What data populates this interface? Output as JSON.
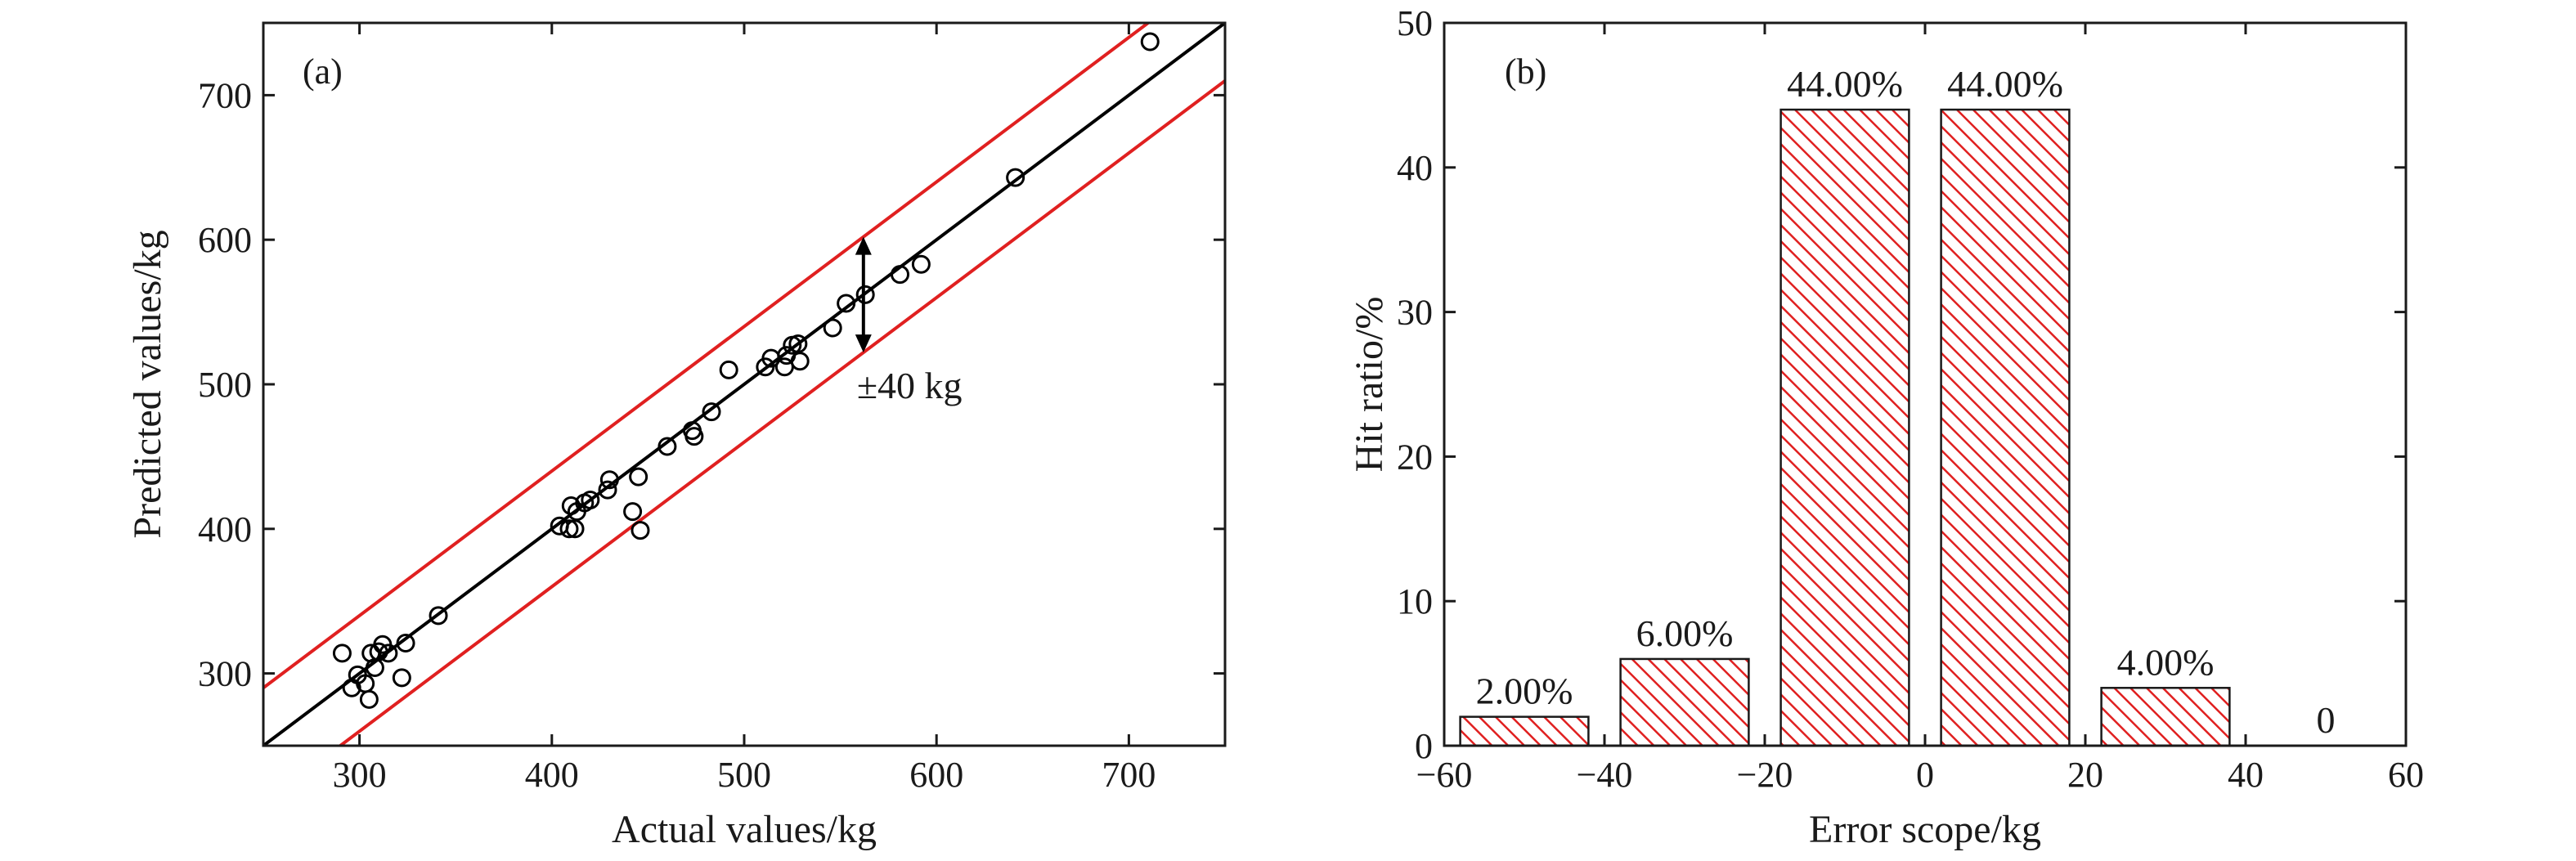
{
  "chart_data": [
    {
      "type": "scatter",
      "panel_label": "(a)",
      "xlabel": "Actual values/kg",
      "ylabel": "Predicted values/kg",
      "xlim": [
        250,
        750
      ],
      "ylim": [
        250,
        750
      ],
      "xticks": [
        "300",
        "400",
        "500",
        "600",
        "700"
      ],
      "yticks": [
        "300",
        "400",
        "500",
        "600",
        "700"
      ],
      "annotation": "±40 kg",
      "band": 40,
      "reference_line": "y = x",
      "colors": {
        "band": "#e02020",
        "fit": "#000000",
        "marker": "#000000"
      },
      "points": [
        [
          291,
          314
        ],
        [
          296,
          290
        ],
        [
          299,
          299
        ],
        [
          303,
          293
        ],
        [
          305,
          282
        ],
        [
          306,
          314
        ],
        [
          308,
          304
        ],
        [
          310,
          315
        ],
        [
          312,
          320
        ],
        [
          315,
          314
        ],
        [
          322,
          297
        ],
        [
          324,
          321
        ],
        [
          341,
          340
        ],
        [
          404,
          402
        ],
        [
          409,
          400
        ],
        [
          410,
          416
        ],
        [
          412,
          400
        ],
        [
          413,
          412
        ],
        [
          417,
          418
        ],
        [
          420,
          420
        ],
        [
          429,
          427
        ],
        [
          430,
          434
        ],
        [
          442,
          412
        ],
        [
          445,
          436
        ],
        [
          446,
          399
        ],
        [
          460,
          457
        ],
        [
          473,
          468
        ],
        [
          474,
          464
        ],
        [
          483,
          481
        ],
        [
          492,
          510
        ],
        [
          511,
          512
        ],
        [
          514,
          518
        ],
        [
          521,
          512
        ],
        [
          522,
          520
        ],
        [
          525,
          527
        ],
        [
          528,
          528
        ],
        [
          529,
          516
        ],
        [
          546,
          539
        ],
        [
          553,
          556
        ],
        [
          563,
          562
        ],
        [
          581,
          576
        ],
        [
          592,
          583
        ],
        [
          641,
          643
        ],
        [
          711,
          737
        ]
      ]
    },
    {
      "type": "bar",
      "panel_label": "(b)",
      "xlabel": "Error scope/kg",
      "ylabel": "Hit ratio/%",
      "xlim": [
        -60,
        60
      ],
      "ylim": [
        0,
        50
      ],
      "xticks": [
        "−60",
        "−40",
        "−20",
        "0",
        "20",
        "40",
        "60"
      ],
      "yticks": [
        "0",
        "10",
        "20",
        "30",
        "40",
        "50"
      ],
      "bin_width": 20,
      "bin_centers": [
        -50,
        -30,
        -10,
        10,
        30,
        50
      ],
      "values": [
        2,
        6,
        44,
        44,
        4,
        0
      ],
      "data_labels": [
        "2.00%",
        "6.00%",
        "44.00%",
        "44.00%",
        "4.00%",
        "0"
      ],
      "colors": {
        "hatch": "#e02020",
        "edge": "#1a1a1a"
      }
    }
  ]
}
